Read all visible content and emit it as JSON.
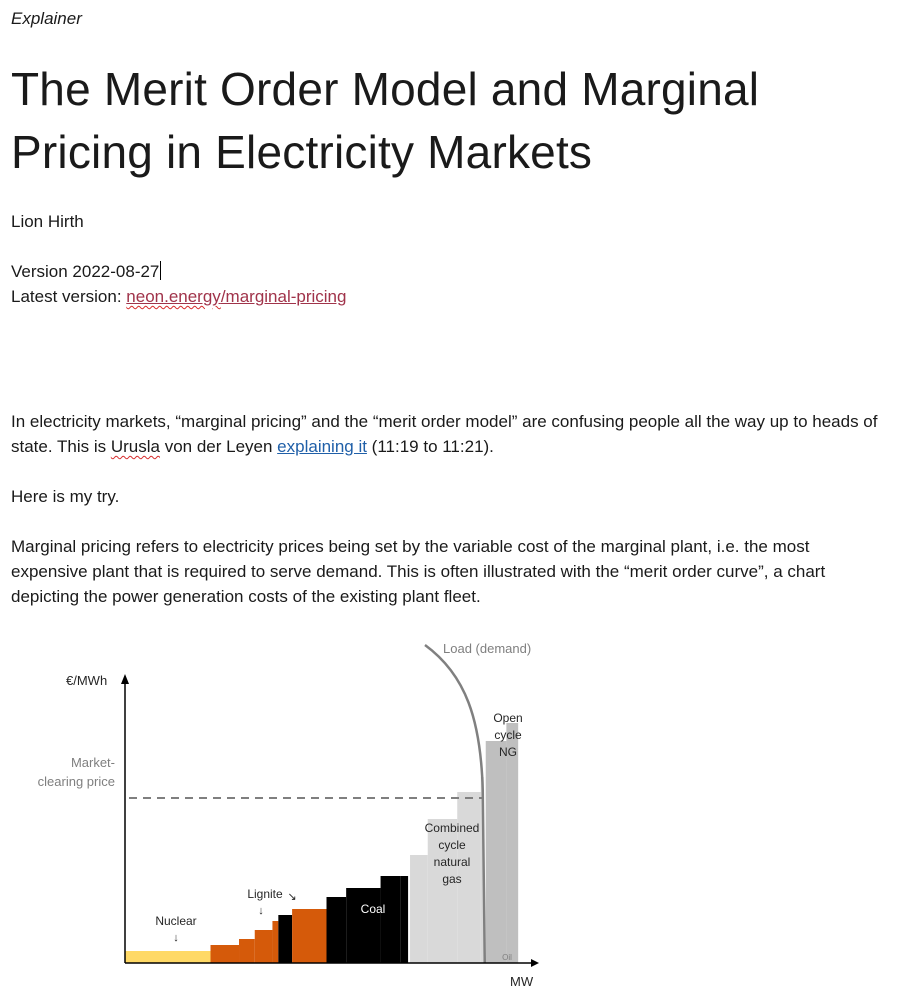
{
  "doc": {
    "kicker": "Explainer",
    "title": "The Merit Order Model and Marginal Pricing in Electricity Markets",
    "author": "Lion Hirth",
    "version": "Version 2022-08-27",
    "latest_label": "Latest version: ",
    "latest_link": "neon.energy/marginal-pricing",
    "p1_a": "In electricity markets, “marginal pricing” and the “merit order model” are confusing people all the way up to heads of state. This is ",
    "p1_name": "Urusla",
    "p1_b": " von der Leyen ",
    "p1_link": "explaining it",
    "p1_c": " (11:19 to 11:21).",
    "p2": "Here is my try.",
    "p3": "Marginal pricing refers to electricity prices being set by the variable cost of the marginal plant, i.e. the most expensive plant that is required to serve demand. This is often illustrated with the “merit order curve”, a chart depicting the power generation costs of the existing plant fleet."
  },
  "chart_data": {
    "type": "bar",
    "ylabel": "€/MWh",
    "xlabel": "MW",
    "load_label": "Load (demand)",
    "price_label_1": "Market-",
    "price_label_2": "clearing price",
    "market_clearing_price": 55,
    "ylim": [
      0,
      95
    ],
    "xlim": [
      0,
      410
    ],
    "labels": {
      "nuclear": "Nuclear",
      "lignite": "Lignite",
      "coal": "Coal",
      "ccgt": [
        "Combined",
        "cycle",
        "natural",
        "gas"
      ],
      "ocgt": [
        "Open",
        "cycle",
        "NG"
      ],
      "oil": "Oil"
    },
    "colors": {
      "nuclear": "#ffd966",
      "lignite": "#d55a0a",
      "lignite_dark": "#000000",
      "coal": "#000000",
      "ccgt": "#d9d9d9",
      "ocgt": "#bfbfbf",
      "load": "#808080",
      "price": "#7f7f7f",
      "axis": "#000000"
    },
    "steps": [
      {
        "type": "nuclear",
        "x0": 0,
        "x1": 87,
        "value": 4
      },
      {
        "type": "lignite",
        "x0": 87,
        "x1": 116,
        "value": 6
      },
      {
        "type": "lignite",
        "x0": 116,
        "x1": 132,
        "value": 8
      },
      {
        "type": "lignite",
        "x0": 132,
        "x1": 150,
        "value": 11
      },
      {
        "type": "lignite",
        "x0": 150,
        "x1": 156,
        "value": 14
      },
      {
        "type": "lignite_dark",
        "x0": 156,
        "x1": 170,
        "value": 16
      },
      {
        "type": "lignite",
        "x0": 170,
        "x1": 205,
        "value": 18
      },
      {
        "type": "coal",
        "x0": 205,
        "x1": 225,
        "value": 22
      },
      {
        "type": "coal",
        "x0": 225,
        "x1": 260,
        "value": 25
      },
      {
        "type": "coal",
        "x0": 260,
        "x1": 280,
        "value": 29
      },
      {
        "type": "coal",
        "x0": 280,
        "x1": 288,
        "value": 29
      },
      {
        "type": "ccgt",
        "x0": 290,
        "x1": 308,
        "value": 36
      },
      {
        "type": "ccgt",
        "x0": 308,
        "x1": 338,
        "value": 48
      },
      {
        "type": "ccgt",
        "x0": 338,
        "x1": 362,
        "value": 57
      },
      {
        "type": "ccgt",
        "x0": 362,
        "x1": 365,
        "value": 62
      },
      {
        "type": "ocgt",
        "x0": 367,
        "x1": 388,
        "value": 74
      },
      {
        "type": "ocgt",
        "x0": 388,
        "x1": 400,
        "value": 80
      }
    ]
  }
}
